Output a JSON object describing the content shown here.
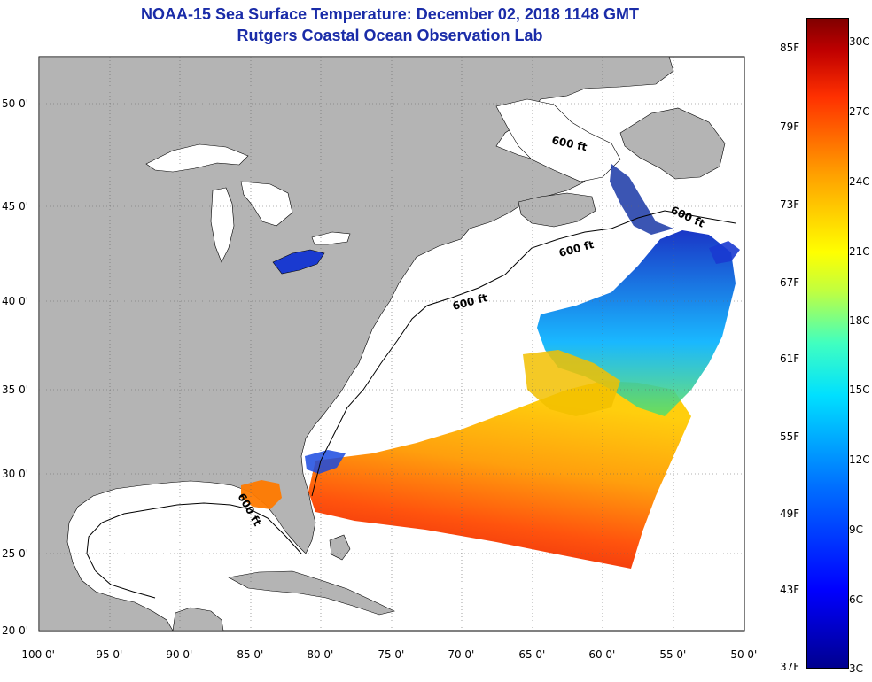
{
  "title": {
    "line1": "NOAA-15 Sea Surface Temperature:  December 02, 2018 1148 GMT",
    "line2": "Rutgers Coastal Ocean Observation Lab"
  },
  "axes": {
    "longitudes": [
      "-100 0'",
      "-95 0'",
      "-90 0'",
      "-85 0'",
      "-80 0'",
      "-75 0'",
      "-70 0'",
      "-65 0'",
      "-60 0'",
      "-55 0'",
      "-50 0'"
    ],
    "latitudes": [
      "50 0'",
      "45 0'",
      "40 0'",
      "35 0'",
      "30 0'",
      "25 0'",
      "20 0'"
    ]
  },
  "contour_labels": [
    "600 ft",
    "600 ft",
    "600 ft",
    "600 ft",
    "600 ft"
  ],
  "colorbar": {
    "fahrenheit": [
      "85F",
      "79F",
      "73F",
      "67F",
      "61F",
      "55F",
      "49F",
      "43F",
      "37F"
    ],
    "celsius": [
      "30C",
      "27C",
      "24C",
      "21C",
      "18C",
      "15C",
      "12C",
      "9C",
      "6C",
      "3C"
    ]
  },
  "colors": {
    "land": "#b4b4b4",
    "ocean": "#ffffff",
    "title": "#1a2ca8"
  }
}
